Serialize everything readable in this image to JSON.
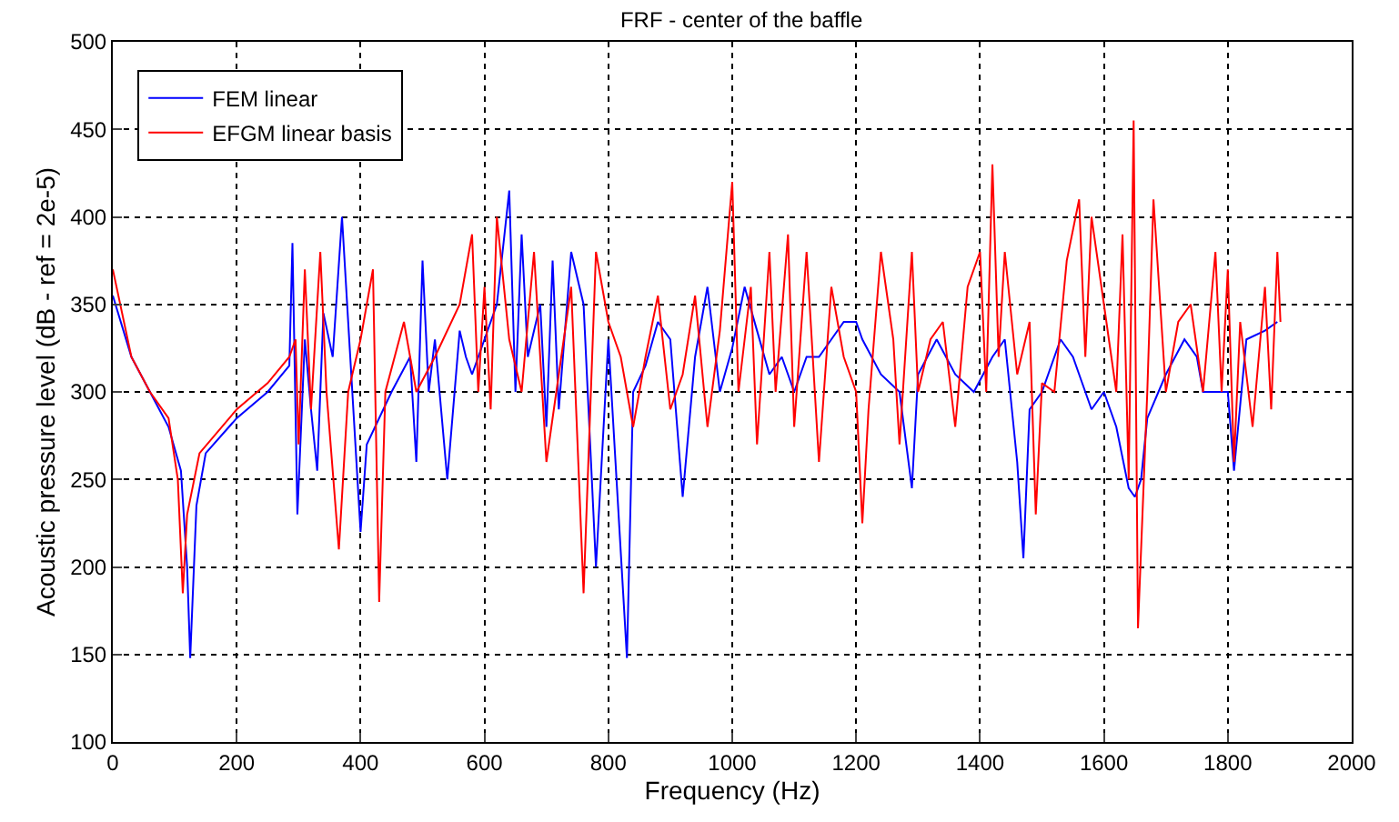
{
  "chart_data": {
    "type": "line",
    "title": "FRF - center of the baffle",
    "xlabel": "Frequency (Hz)",
    "ylabel": "Acoustic pressure level (dB - ref = 2e-5)",
    "xlim": [
      0,
      2000
    ],
    "xticks": [
      0,
      200,
      400,
      600,
      800,
      1000,
      1200,
      1400,
      1600,
      1800,
      2000
    ],
    "ylim": [
      100,
      500
    ],
    "yticks": [
      100,
      150,
      200,
      250,
      300,
      350,
      400,
      450,
      500
    ],
    "grid": true,
    "legend": "top left",
    "marker": "none",
    "line_style": "solid",
    "series": [
      {
        "name": "FEM linear",
        "color": "#0000ff",
        "x": [
          0,
          30,
          60,
          90,
          110,
          120,
          125,
          135,
          150,
          200,
          250,
          285,
          290,
          298,
          310,
          320,
          330,
          340,
          355,
          370,
          385,
          400,
          410,
          450,
          480,
          490,
          500,
          510,
          520,
          540,
          560,
          570,
          580,
          600,
          620,
          640,
          650,
          660,
          670,
          690,
          700,
          710,
          720,
          740,
          760,
          780,
          800,
          830,
          840,
          860,
          880,
          900,
          920,
          940,
          960,
          980,
          1000,
          1020,
          1040,
          1060,
          1080,
          1100,
          1120,
          1140,
          1160,
          1180,
          1200,
          1210,
          1240,
          1270,
          1290,
          1300,
          1330,
          1360,
          1390,
          1420,
          1440,
          1460,
          1470,
          1480,
          1500,
          1530,
          1550,
          1560,
          1580,
          1600,
          1620,
          1640,
          1650,
          1660,
          1670,
          1700,
          1730,
          1750,
          1760,
          1780,
          1800,
          1810,
          1830,
          1860,
          1880
        ],
        "values": [
          355,
          320,
          300,
          280,
          255,
          200,
          148,
          235,
          265,
          285,
          300,
          315,
          385,
          230,
          330,
          290,
          255,
          345,
          320,
          400,
          310,
          220,
          270,
          300,
          320,
          260,
          375,
          300,
          330,
          250,
          335,
          320,
          310,
          330,
          350,
          415,
          300,
          390,
          320,
          350,
          280,
          375,
          290,
          380,
          350,
          200,
          330,
          148,
          300,
          315,
          340,
          330,
          240,
          320,
          360,
          300,
          325,
          360,
          335,
          310,
          320,
          300,
          320,
          320,
          330,
          340,
          340,
          330,
          310,
          300,
          245,
          310,
          330,
          310,
          300,
          320,
          330,
          260,
          205,
          290,
          300,
          330,
          320,
          310,
          290,
          300,
          280,
          245,
          240,
          250,
          285,
          310,
          330,
          320,
          300,
          300,
          300,
          255,
          330,
          335,
          340
        ]
      },
      {
        "name": "EFGM linear basis",
        "color": "#ff0000",
        "x": [
          0,
          30,
          60,
          90,
          105,
          113,
          120,
          140,
          200,
          250,
          285,
          295,
          300,
          310,
          320,
          335,
          345,
          365,
          380,
          400,
          420,
          430,
          440,
          470,
          490,
          520,
          560,
          580,
          590,
          600,
          610,
          620,
          640,
          660,
          680,
          700,
          720,
          740,
          760,
          780,
          800,
          820,
          840,
          860,
          880,
          900,
          920,
          940,
          960,
          980,
          1000,
          1010,
          1030,
          1040,
          1060,
          1070,
          1090,
          1100,
          1120,
          1140,
          1160,
          1180,
          1200,
          1210,
          1220,
          1240,
          1260,
          1270,
          1290,
          1300,
          1320,
          1340,
          1360,
          1380,
          1400,
          1410,
          1420,
          1430,
          1440,
          1460,
          1480,
          1490,
          1500,
          1520,
          1540,
          1560,
          1570,
          1580,
          1600,
          1620,
          1630,
          1640,
          1648,
          1655,
          1670,
          1680,
          1700,
          1720,
          1740,
          1760,
          1780,
          1790,
          1800,
          1810,
          1820,
          1840,
          1860,
          1870,
          1880,
          1885
        ],
        "values": [
          370,
          320,
          300,
          285,
          250,
          185,
          230,
          265,
          290,
          305,
          320,
          330,
          270,
          370,
          290,
          380,
          300,
          210,
          300,
          330,
          370,
          180,
          300,
          340,
          300,
          320,
          350,
          390,
          300,
          360,
          290,
          400,
          330,
          300,
          380,
          260,
          310,
          360,
          185,
          380,
          340,
          320,
          280,
          320,
          355,
          290,
          310,
          355,
          280,
          335,
          420,
          300,
          360,
          270,
          380,
          300,
          390,
          280,
          380,
          260,
          360,
          320,
          300,
          225,
          290,
          380,
          330,
          270,
          380,
          300,
          330,
          340,
          280,
          360,
          380,
          300,
          430,
          320,
          380,
          310,
          340,
          230,
          305,
          300,
          375,
          410,
          320,
          400,
          350,
          300,
          390,
          250,
          455,
          165,
          300,
          410,
          300,
          340,
          350,
          300,
          380,
          300,
          370,
          260,
          340,
          280,
          360,
          290,
          380,
          340
        ]
      }
    ]
  }
}
